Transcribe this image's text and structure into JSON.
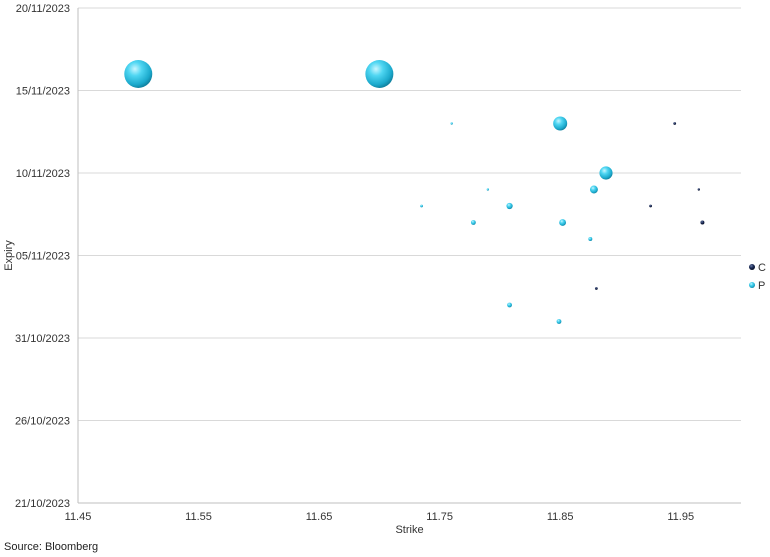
{
  "chart_data": {
    "type": "scatter",
    "subtype": "bubble",
    "xlabel": "Strike",
    "ylabel": "Expiry",
    "xlim": [
      11.45,
      12.0
    ],
    "xticks": [
      "11.45",
      "11.55",
      "11.65",
      "11.75",
      "11.85",
      "11.95"
    ],
    "ylim": [
      "21/10/2023",
      "20/11/2023"
    ],
    "yticks": [
      "21/10/2023",
      "26/10/2023",
      "31/10/2023",
      "05/11/2023",
      "10/11/2023",
      "15/11/2023",
      "20/11/2023"
    ],
    "grid": "horizontal",
    "legend_position": "right",
    "series": [
      {
        "name": "C",
        "color": "#0d1b3e",
        "points": [
          {
            "x": 11.945,
            "y": "13/11/2023",
            "size": 1
          },
          {
            "x": 11.925,
            "y": "08/11/2023",
            "size": 1
          },
          {
            "x": 11.968,
            "y": "07/11/2023",
            "size": 2
          },
          {
            "x": 11.965,
            "y": "09/11/2023",
            "size": 0.5
          },
          {
            "x": 11.88,
            "y": "03/11/2023",
            "size": 1
          }
        ]
      },
      {
        "name": "P",
        "color": "#29c5e6",
        "points": [
          {
            "x": 11.5,
            "y": "16/11/2023",
            "size": 100
          },
          {
            "x": 11.7,
            "y": "16/11/2023",
            "size": 100
          },
          {
            "x": 11.85,
            "y": "13/11/2023",
            "size": 25
          },
          {
            "x": 11.888,
            "y": "10/11/2023",
            "size": 22
          },
          {
            "x": 11.878,
            "y": "09/11/2023",
            "size": 8
          },
          {
            "x": 11.808,
            "y": "08/11/2023",
            "size": 5
          },
          {
            "x": 11.852,
            "y": "07/11/2023",
            "size": 6
          },
          {
            "x": 11.778,
            "y": "07/11/2023",
            "size": 3
          },
          {
            "x": 11.875,
            "y": "06/11/2023",
            "size": 2
          },
          {
            "x": 11.735,
            "y": "08/11/2023",
            "size": 1
          },
          {
            "x": 11.79,
            "y": "09/11/2023",
            "size": 0.5
          },
          {
            "x": 11.76,
            "y": "13/11/2023",
            "size": 0.5
          },
          {
            "x": 11.808,
            "y": "02/11/2023",
            "size": 3
          },
          {
            "x": 11.849,
            "y": "01/11/2023",
            "size": 3
          }
        ]
      }
    ]
  },
  "source": "Source: Bloomberg"
}
